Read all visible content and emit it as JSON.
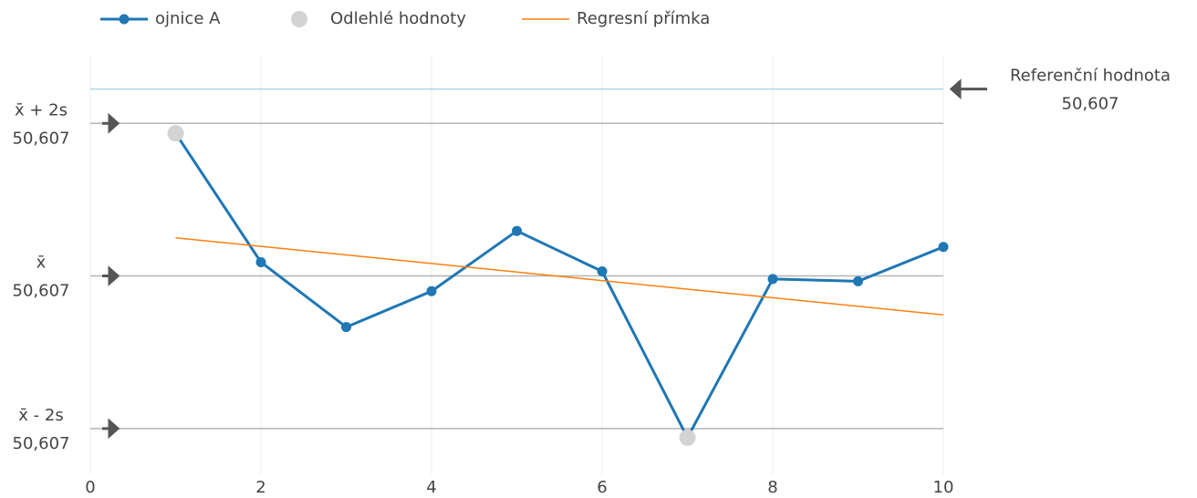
{
  "chart_data": {
    "type": "line",
    "legend": "top-left",
    "xlim": [
      0,
      10.7
    ],
    "xticks": [
      0,
      2,
      4,
      6,
      8,
      10
    ],
    "ylim": [
      -2.6,
      2.9
    ],
    "grid": true,
    "series": [
      {
        "name": "ojnice A",
        "color": "#1f77b4",
        "mode": "lines+markers",
        "x": [
          1,
          2,
          3,
          4,
          5,
          6,
          7,
          8,
          9,
          10
        ],
        "values": [
          1.87,
          0.18,
          -0.67,
          -0.2,
          0.59,
          0.06,
          -2.12,
          -0.04,
          -0.07,
          0.38
        ]
      },
      {
        "name": "Odlehlé hodnoty",
        "color": "#d3d3d3",
        "mode": "markers",
        "x": [
          1,
          7
        ],
        "values": [
          1.87,
          -2.12
        ]
      },
      {
        "name": "Regresní přímka",
        "color": "#ff7f0e",
        "mode": "lines",
        "x": [
          1,
          10
        ],
        "values": [
          0.5,
          -0.51
        ]
      }
    ],
    "reference_lines": [
      {
        "label": "Referenční hodnota",
        "caption": "50,607",
        "value": 2.45,
        "side": "right",
        "color": "#add8e6"
      },
      {
        "label": "x̄ + 2s",
        "caption": "50,607",
        "value": 2,
        "side": "left",
        "color": "#b4b4b4"
      },
      {
        "label": "x̄",
        "caption": "50,607",
        "value": 0,
        "side": "left",
        "color": "#b4b4b4"
      },
      {
        "label": "x̄ - 2s",
        "caption": "50,607",
        "value": -2,
        "side": "left",
        "color": "#b4b4b4"
      }
    ]
  }
}
